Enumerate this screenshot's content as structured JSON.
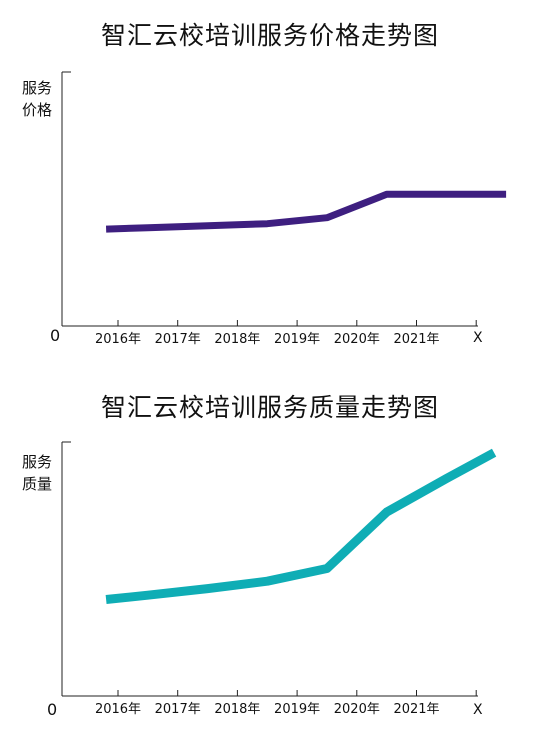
{
  "chart_data": [
    {
      "type": "line",
      "title": "智汇云校培训服务价格走势图",
      "ylabel": "服务价格",
      "xlabel": "X",
      "zero_label": "0",
      "categories": [
        "2016年",
        "2017年",
        "2018年",
        "2019年",
        "2020年",
        "2021年"
      ],
      "x": [
        2015.8,
        2016.5,
        2017.5,
        2018.5,
        2019.5,
        2020.5,
        2021.5,
        2022.5
      ],
      "values": [
        29.0,
        29.4,
        30.0,
        30.6,
        32.4,
        39.4,
        39.4,
        39.4
      ],
      "ylim": [
        0,
        76
      ],
      "color": "#3e1f80",
      "grid": false
    },
    {
      "type": "line",
      "title": "智汇云校培训服务质量走势图",
      "ylabel": "服务质量",
      "xlabel": "X",
      "zero_label": "0",
      "categories": [
        "2016年",
        "2017年",
        "2018年",
        "2019年",
        "2020年",
        "2021年"
      ],
      "x": [
        2015.8,
        2016.5,
        2017.5,
        2018.5,
        2019.5,
        2020.5,
        2021.5,
        2022.3
      ],
      "values": [
        38.0,
        39.7,
        42.3,
        45.2,
        50.2,
        72.4,
        85.6,
        95.8
      ],
      "ylim": [
        0,
        100
      ],
      "color": "#0fadb5",
      "grid": false
    }
  ]
}
